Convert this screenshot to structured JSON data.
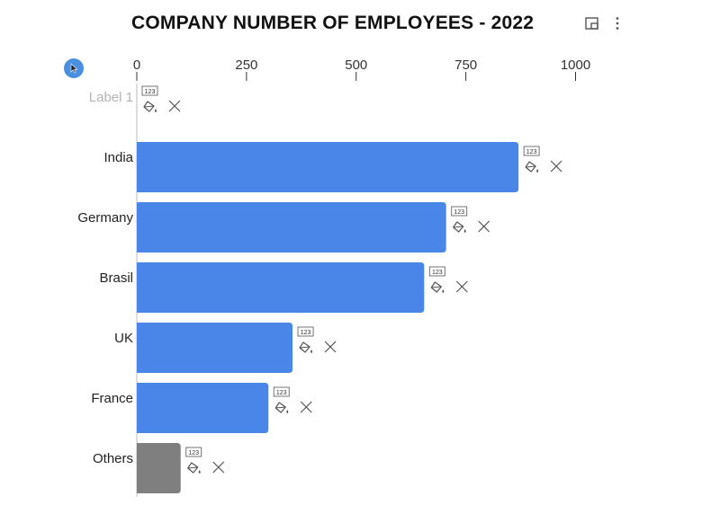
{
  "header": {
    "title": "COMPANY NUMBER OF EMPLOYEES - 2022",
    "focus_icon": "focus-mode-icon",
    "more_icon": "more-options-icon"
  },
  "toolbar": {
    "cursor_icon": "pointer-cursor-icon"
  },
  "bar_controls": {
    "number_format_label": "123",
    "paint_icon": "paint-bucket-icon",
    "close_icon": "close-icon"
  },
  "colors": {
    "bar": "#4a86e8",
    "others_bar": "#7f7f7f",
    "axis": "#333333",
    "placeholder_label": "#b3b3b3",
    "icon": "#555555"
  },
  "chart_data": {
    "type": "bar",
    "orientation": "horizontal",
    "title": "COMPANY NUMBER OF EMPLOYEES - 2022",
    "categories": [
      "Label 1",
      "India",
      "Germany",
      "Brasil",
      "UK",
      "France",
      "Others"
    ],
    "values": [
      0,
      870,
      705,
      655,
      355,
      300,
      100
    ],
    "x_ticks": [
      "0",
      "250",
      "500",
      "750",
      "1000"
    ],
    "x_tick_values": [
      0,
      250,
      500,
      750,
      1000
    ],
    "xlim": [
      0,
      1000
    ],
    "axis_position": "top",
    "placeholder_category": "Label 1",
    "gray_category": "Others",
    "grid": false,
    "xlabel": "",
    "ylabel": ""
  }
}
